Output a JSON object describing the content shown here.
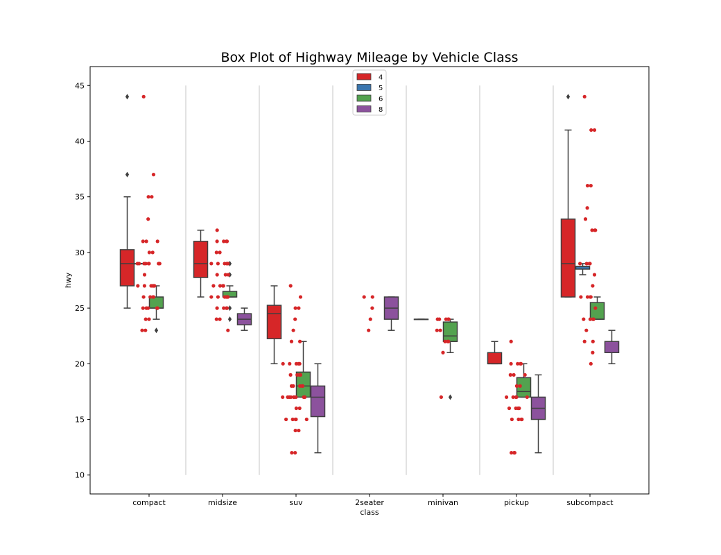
{
  "chart_data": {
    "type": "box",
    "title": "Box Plot of Highway Mileage by Vehicle Class",
    "xlabel": "class",
    "ylabel": "hwy",
    "ylim": [
      8.3,
      46.7
    ],
    "yticks": [
      10,
      15,
      20,
      25,
      30,
      35,
      40,
      45
    ],
    "categories": [
      "compact",
      "midsize",
      "suv",
      "2seater",
      "minivan",
      "pickup",
      "subcompact"
    ],
    "hue_title": "",
    "legend": {
      "placement": "top-center",
      "entries": [
        "4",
        "5",
        "6",
        "8"
      ]
    },
    "hue_levels": [
      "4",
      "5",
      "6",
      "8"
    ],
    "colors": {
      "4": "#d62628",
      "5": "#3a76af",
      "6": "#53a24f",
      "8": "#8c529d"
    },
    "grid": false,
    "separators": true,
    "boxes": [
      {
        "category": "compact",
        "hue": "4",
        "whislo": 25,
        "q1": 27,
        "med": 29,
        "q3": 30.25,
        "whishi": 35,
        "fliers": [
          37,
          44
        ]
      },
      {
        "category": "compact",
        "hue": "5",
        "whislo": 29,
        "q1": 29,
        "med": 29,
        "q3": 29,
        "whishi": 29,
        "fliers": []
      },
      {
        "category": "compact",
        "hue": "6",
        "whislo": 24,
        "q1": 25,
        "med": 25,
        "q3": 26,
        "whishi": 27,
        "fliers": [
          23
        ]
      },
      {
        "category": "midsize",
        "hue": "4",
        "whislo": 26,
        "q1": 27.75,
        "med": 29,
        "q3": 31,
        "whishi": 32,
        "fliers": []
      },
      {
        "category": "midsize",
        "hue": "6",
        "whislo": 26,
        "q1": 26,
        "med": 26,
        "q3": 26.5,
        "whishi": 27,
        "fliers": [
          24,
          25,
          28,
          29
        ]
      },
      {
        "category": "midsize",
        "hue": "8",
        "whislo": 23,
        "q1": 23.5,
        "med": 24,
        "q3": 24.5,
        "whishi": 25,
        "fliers": []
      },
      {
        "category": "suv",
        "hue": "4",
        "whislo": 20,
        "q1": 22.25,
        "med": 24.5,
        "q3": 25.25,
        "whishi": 27,
        "fliers": []
      },
      {
        "category": "suv",
        "hue": "6",
        "whislo": 17,
        "q1": 17,
        "med": 18,
        "q3": 19.25,
        "whishi": 22,
        "fliers": []
      },
      {
        "category": "suv",
        "hue": "8",
        "whislo": 12,
        "q1": 15.25,
        "med": 17,
        "q3": 18,
        "whishi": 20,
        "fliers": []
      },
      {
        "category": "2seater",
        "hue": "8",
        "whislo": 23,
        "q1": 24,
        "med": 25,
        "q3": 26,
        "whishi": 26,
        "fliers": []
      },
      {
        "category": "minivan",
        "hue": "4",
        "whislo": 24,
        "q1": 24,
        "med": 24,
        "q3": 24,
        "whishi": 24,
        "fliers": []
      },
      {
        "category": "minivan",
        "hue": "6",
        "whislo": 21,
        "q1": 22,
        "med": 22.5,
        "q3": 23.75,
        "whishi": 24,
        "fliers": [
          17
        ]
      },
      {
        "category": "pickup",
        "hue": "4",
        "whislo": 20,
        "q1": 20,
        "med": 20,
        "q3": 21,
        "whishi": 22,
        "fliers": []
      },
      {
        "category": "pickup",
        "hue": "6",
        "whislo": 17,
        "q1": 17,
        "med": 17.5,
        "q3": 18.75,
        "whishi": 20,
        "fliers": []
      },
      {
        "category": "pickup",
        "hue": "8",
        "whislo": 12,
        "q1": 15,
        "med": 16,
        "q3": 17,
        "whishi": 19,
        "fliers": []
      },
      {
        "category": "subcompact",
        "hue": "4",
        "whislo": 26,
        "q1": 26,
        "med": 29,
        "q3": 33,
        "whishi": 41,
        "fliers": [
          44
        ]
      },
      {
        "category": "subcompact",
        "hue": "5",
        "whislo": 28,
        "q1": 28.5,
        "med": 28.75,
        "q3": 28.75,
        "whishi": 29,
        "fliers": []
      },
      {
        "category": "subcompact",
        "hue": "6",
        "whislo": 24,
        "q1": 24,
        "med": 24,
        "q3": 25.5,
        "whishi": 26,
        "fliers": []
      },
      {
        "category": "subcompact",
        "hue": "8",
        "whislo": 20,
        "q1": 21,
        "med": 21,
        "q3": 22,
        "whishi": 23,
        "fliers": []
      }
    ],
    "strip_points": {
      "compact": [
        44,
        37,
        35,
        35,
        33,
        31,
        31,
        31,
        30,
        30,
        29,
        29,
        29,
        29,
        29,
        29,
        29,
        29,
        29,
        28,
        27,
        27,
        27,
        27,
        27,
        27,
        27,
        26,
        26,
        26,
        26,
        25,
        25,
        25,
        25,
        25,
        24,
        24,
        23,
        23
      ],
      "midsize": [
        32,
        31,
        31,
        31,
        31,
        30,
        30,
        29,
        29,
        29,
        29,
        29,
        29,
        28,
        28,
        28,
        27,
        27,
        27,
        27,
        26,
        26,
        26,
        26,
        26,
        26,
        26,
        25,
        25,
        25,
        25,
        24,
        24,
        23
      ],
      "suv": [
        27,
        26,
        25,
        25,
        24,
        23,
        22,
        22,
        20,
        20,
        20,
        20,
        20,
        20,
        19,
        19,
        19,
        19,
        19,
        18,
        18,
        18,
        18,
        18,
        17,
        17,
        17,
        17,
        17,
        17,
        17,
        17,
        17,
        17,
        16,
        16,
        15,
        15,
        15,
        15,
        15,
        14,
        14,
        12,
        12
      ],
      "2seater": [
        26,
        26,
        25,
        24,
        23
      ],
      "minivan": [
        24,
        24,
        24,
        24,
        24,
        23,
        23,
        22,
        22,
        22,
        21,
        17
      ],
      "pickup": [
        22,
        20,
        20,
        20,
        20,
        19,
        19,
        19,
        18,
        18,
        17,
        17,
        17,
        17,
        17,
        16,
        16,
        16,
        16,
        16,
        15,
        15,
        15,
        15,
        12,
        12,
        12
      ],
      "subcompact": [
        44,
        41,
        41,
        36,
        36,
        34,
        33,
        32,
        32,
        32,
        29,
        29,
        29,
        29,
        28,
        27,
        26,
        26,
        26,
        26,
        25,
        24,
        24,
        24,
        24,
        23,
        22,
        22,
        21,
        20
      ]
    }
  }
}
